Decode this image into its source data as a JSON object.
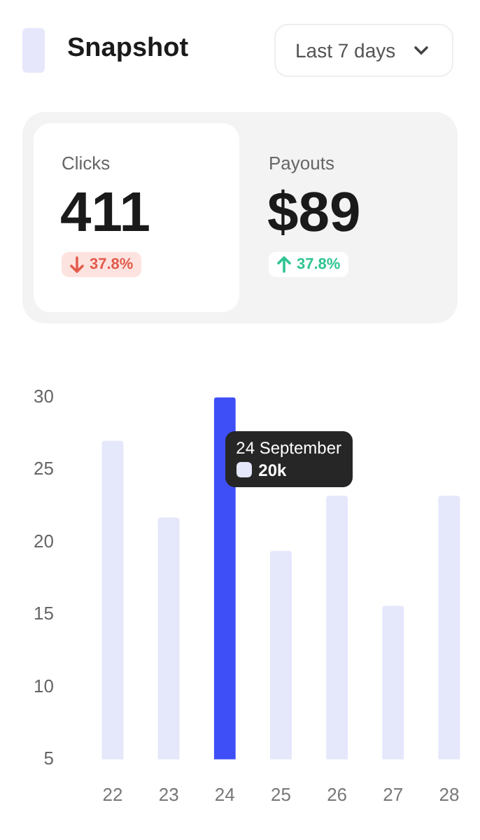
{
  "chart_data": {
    "type": "bar",
    "title": "Snapshot",
    "categories": [
      "22",
      "23",
      "24",
      "25",
      "26",
      "27",
      "28"
    ],
    "values": [
      27,
      21.7,
      30,
      19.4,
      23.2,
      15.6,
      23.2
    ],
    "colors": [
      "#e5e7fb",
      "#e5e7fb",
      "#3f4ff8",
      "#e5e7fb",
      "#e5e7fb",
      "#e5e7fb",
      "#e5e7fb"
    ],
    "ylim": [
      5,
      30
    ],
    "yticks": [
      5,
      10,
      15,
      20,
      25,
      30
    ],
    "grid": false,
    "legend": false,
    "annotations": [
      "Last 7 days",
      "Clicks",
      "411",
      "37.8%",
      "Payouts",
      "$89",
      "37.8%",
      "24 September",
      "20k"
    ]
  }
}
